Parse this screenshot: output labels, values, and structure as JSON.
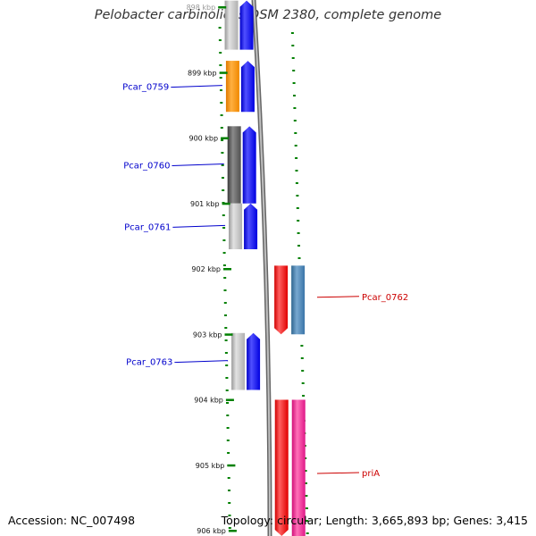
{
  "title": "Pelobacter carbinolicus DSM 2380, complete genome",
  "footer": {
    "accession": "Accession: NC_007498",
    "summary": "Topology: circular; Length: 3,665,893 bp; Genes: 3,415"
  },
  "ticks": [
    {
      "label": "898 kbp",
      "kbp": 898
    },
    {
      "label": "899 kbp",
      "kbp": 899
    },
    {
      "label": "900 kbp",
      "kbp": 900
    },
    {
      "label": "901 kbp",
      "kbp": 901
    },
    {
      "label": "902 kbp",
      "kbp": 902
    },
    {
      "label": "903 kbp",
      "kbp": 903
    },
    {
      "label": "904 kbp",
      "kbp": 904
    },
    {
      "label": "905 kbp",
      "kbp": 905
    },
    {
      "label": "906 kbp",
      "kbp": 906
    }
  ],
  "genes_left": [
    {
      "name": "",
      "start_kbp": 897.9,
      "end_kbp": 898.65,
      "color": "#c8c8c8"
    },
    {
      "name": "Pcar_0759",
      "start_kbp": 898.82,
      "end_kbp": 899.6,
      "color": "#ff8c00"
    },
    {
      "name": "Pcar_0760",
      "start_kbp": 899.82,
      "end_kbp": 901.0,
      "color": "#606060"
    },
    {
      "name": "Pcar_0761",
      "start_kbp": 901.0,
      "end_kbp": 901.7,
      "color": "#c8c8c8"
    },
    {
      "name": "Pcar_0763",
      "start_kbp": 902.98,
      "end_kbp": 903.85,
      "color": "#c8c8c8"
    }
  ],
  "genes_right": [
    {
      "name": "Pcar_0762",
      "start_kbp": 901.95,
      "end_kbp": 903.0,
      "color": "#4682b4"
    },
    {
      "name": "priA",
      "start_kbp": 904.0,
      "end_kbp": 906.2,
      "color": "#ff1493"
    }
  ],
  "colors": {
    "forward_gene": "#0000ff",
    "reverse_gene": "#ff0000",
    "backbone": "#808080",
    "gc_skew": "#008000",
    "left_label": "#0000cc",
    "right_label": "#cc0000"
  }
}
